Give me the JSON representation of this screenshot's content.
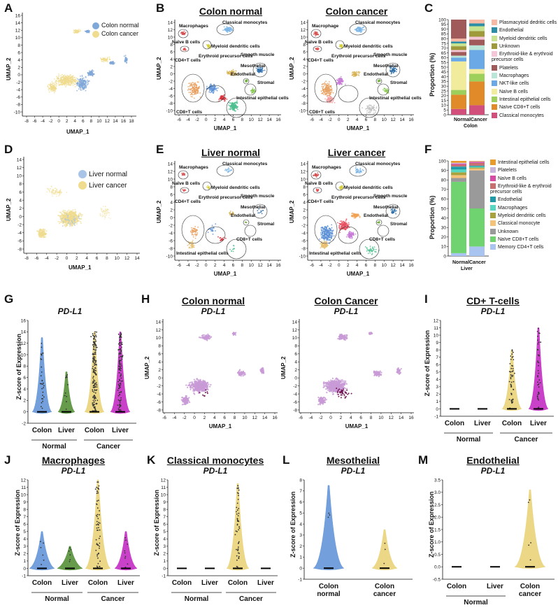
{
  "panel_letters": [
    "A",
    "B",
    "C",
    "D",
    "E",
    "F",
    "G",
    "H",
    "I",
    "J",
    "K",
    "L",
    "M"
  ],
  "umap_axes": {
    "x": "UMAP_1",
    "y": "UMAP_2"
  },
  "A": {
    "legend": [
      {
        "label": "Colon normal",
        "color": "#7fa8d8"
      },
      {
        "label": "Colon cancer",
        "color": "#f0dc8e"
      }
    ],
    "xticks": [
      "-8",
      "-6",
      "-4",
      "-2",
      "0",
      "2",
      "4",
      "6",
      "8",
      "10",
      "12",
      "14",
      "16",
      "18"
    ],
    "yticks": [
      "16",
      "14",
      "12",
      "10",
      "8",
      "6",
      "4",
      "2",
      "0",
      "-2",
      "-4",
      "-6",
      "-8",
      "-10"
    ]
  },
  "B": {
    "titles": [
      "Colon normal",
      "Colon cancer"
    ],
    "xticks": [
      "-6",
      "-4",
      "-2",
      "0",
      "2",
      "4",
      "6",
      "8",
      "10",
      "12",
      "14",
      "16"
    ],
    "yticks": [
      "14",
      "12",
      "10",
      "8",
      "6",
      "4",
      "2",
      "0",
      "-2",
      "-4",
      "-6",
      "-8",
      "-10"
    ],
    "left_annos": [
      "Macrophages",
      "Classical monocytes",
      "Naïve B cells",
      "Myeloid dendritic cells",
      "Smooth muscle",
      "CD4+T cells",
      "Erythroid precursor cells",
      "Mesothelial",
      "Endothelial",
      "Stromal",
      "Intestinal epithelial cells",
      "CD8+T cells"
    ],
    "right_annos": [
      "Macrophage",
      "Classical monocytes",
      "Naïve B cells",
      "Myeloid dendritic cells",
      "Smooth muscle",
      "CD4+T cells",
      "Erythroid precursor cells",
      "Mesothelial",
      "Endothelial",
      "Stromal",
      "Intestinal epithelial cells",
      "CD8+T cells"
    ]
  },
  "C": {
    "ylabel": "Proportion (%)",
    "yticks": [
      "100",
      "95",
      "90",
      "85",
      "80",
      "75",
      "70",
      "65",
      "60",
      "55",
      "50",
      "45",
      "40",
      "35",
      "30",
      "25",
      "20",
      "15",
      "10",
      "5",
      "0"
    ],
    "bars": [
      "Normal",
      "Cancer"
    ],
    "group": "Colon",
    "legend": [
      {
        "label": "Plasmacytoid dedritic cells",
        "color": "#f7b9a4"
      },
      {
        "label": "Endothelial",
        "color": "#2c8ea6"
      },
      {
        "label": "Myeloid dendritic cells",
        "color": "#c7e38f"
      },
      {
        "label": "Unknown",
        "color": "#9e9a3c"
      },
      {
        "label": "Erythroid-like & erythroid precursor cells",
        "color": "#f5c6d8"
      },
      {
        "label": "Platelets",
        "color": "#a05a5a"
      },
      {
        "label": "Macrophages",
        "color": "#b9e6d6"
      },
      {
        "label": "NKT-like cells",
        "color": "#6aa8e6"
      },
      {
        "label": "Naïve B cells",
        "color": "#f0ec9c"
      },
      {
        "label": "Intestinal epithelial cells",
        "color": "#9dd05a"
      },
      {
        "label": "Naïve CD8+T cells",
        "color": "#e08a2a"
      },
      {
        "label": "Classical monocytes",
        "color": "#d24f7c"
      }
    ]
  },
  "D": {
    "legend": [
      {
        "label": "Liver normal",
        "color": "#a9c4e6"
      },
      {
        "label": "Liver cancer",
        "color": "#f0dc8e"
      }
    ],
    "xticks": [
      "-8",
      "-6",
      "-4",
      "-2",
      "0",
      "2",
      "4",
      "6",
      "8",
      "10",
      "12",
      "14"
    ],
    "yticks": [
      "14",
      "12",
      "10",
      "8",
      "6",
      "4",
      "2",
      "0",
      "-2",
      "-4",
      "-6",
      "-8"
    ]
  },
  "E": {
    "titles": [
      "Liver normal",
      "Liver cancer"
    ],
    "xticks": [
      "-6",
      "-4",
      "-2",
      "0",
      "2",
      "4",
      "6",
      "8",
      "10",
      "12",
      "14",
      "16"
    ],
    "yticks": [
      "14",
      "12",
      "10",
      "8",
      "6",
      "4",
      "2",
      "0",
      "-2",
      "-4",
      "-6",
      "-8",
      "-10"
    ],
    "left_annos": [
      "Macrophages",
      "Classical monocytes",
      "Naïve B cells",
      "Myeloid dendritic cells",
      "Smooth muscle",
      "CD4+T cells",
      "Erythroid precursor cells",
      "Mesothelial",
      "Endothelial",
      "Stromal",
      "CD8+T cells",
      "Intestinal epithelial cells"
    ],
    "right_annos": [
      "Macrophages",
      "Classical monocytes",
      "Naïve B cells",
      "Myeloid dendritic cells",
      "Smooth muscle",
      "CD4+T cells",
      "Erythroid precursor cells",
      "Mesothelial",
      "Endothelial",
      "Stromal",
      "CD8+T cells",
      "Intestinal epithelial cells"
    ]
  },
  "F": {
    "ylabel": "Proportion (%)",
    "yticks": [
      "100",
      "90",
      "80",
      "70",
      "60",
      "50",
      "40",
      "30",
      "20",
      "10",
      "0"
    ],
    "bars": [
      "Normal",
      "Cancer"
    ],
    "group": "Liver",
    "legend": [
      {
        "label": "Intestinal epithelial cells",
        "color": "#e89a2a"
      },
      {
        "label": "Platelets",
        "color": "#c9b5dc"
      },
      {
        "label": "Naïve B cells",
        "color": "#d84aa6"
      },
      {
        "label": "Erythroid-like & erythroid precursor cells",
        "color": "#c87070"
      },
      {
        "label": "Endothelial",
        "color": "#1f9aa8"
      },
      {
        "label": "Macrophages",
        "color": "#55d8c2"
      },
      {
        "label": "Myeloid dendritic cells",
        "color": "#a8a23c"
      },
      {
        "label": "Classical monocyte",
        "color": "#f5c27a"
      },
      {
        "label": "Unknown",
        "color": "#9a9a9a"
      },
      {
        "label": "Naïve CD8+T cells",
        "color": "#6fd46f"
      },
      {
        "label": "Memory CD4+T cells",
        "color": "#a9c4f0"
      }
    ]
  },
  "violin_common": {
    "ylabel": "Z-score of Expression",
    "gene": "PD-L1",
    "normal": "Normal",
    "cancer": "Cancer",
    "colon": "Colon",
    "liver": "Liver"
  },
  "G": {
    "yticks": [
      "16",
      "14",
      "12",
      "10",
      "8",
      "6",
      "4",
      "2",
      "0",
      "-2"
    ]
  },
  "H": {
    "titles": [
      "Colon normal",
      "Colon Cancer"
    ],
    "xticks": [
      "-6",
      "-4",
      "-2",
      "0",
      "2",
      "4",
      "6",
      "8",
      "10",
      "12",
      "14",
      "16"
    ],
    "yticks": [
      "14",
      "12",
      "10",
      "8",
      "6",
      "4",
      "2",
      "0",
      "-2",
      "-4",
      "-6",
      "-8"
    ]
  },
  "I": {
    "title": "CD+ T-cells",
    "yticks": [
      "12",
      "11",
      "10",
      "9",
      "8",
      "7",
      "6",
      "5",
      "4",
      "3",
      "2",
      "1",
      "0",
      "-1"
    ]
  },
  "J": {
    "title": "Macrophages",
    "yticks": [
      "12",
      "11",
      "10",
      "9",
      "8",
      "7",
      "6",
      "5",
      "4",
      "3",
      "2",
      "1",
      "0",
      "-1"
    ]
  },
  "K": {
    "title": "Classical monocytes",
    "yticks": [
      "12",
      "11",
      "10",
      "9",
      "8",
      "7",
      "6",
      "5",
      "4",
      "3",
      "2",
      "1",
      "0",
      "-1"
    ]
  },
  "L": {
    "title": "Mesothelial",
    "yticks": [
      "8",
      "7",
      "6",
      "5",
      "4",
      "3",
      "2",
      "1",
      "0",
      "-1"
    ],
    "labels": [
      "Colon\nnormal",
      "Colon\ncancer"
    ]
  },
  "M": {
    "title": "Endothelial",
    "yticks": [
      "3.5",
      "3.0",
      "2.5",
      "2.0",
      "1.5",
      "1.0",
      "0.5",
      "0.0",
      "-0.5"
    ],
    "labels": [
      "Colon",
      "Liver",
      "Colon\ncancer"
    ]
  }
}
